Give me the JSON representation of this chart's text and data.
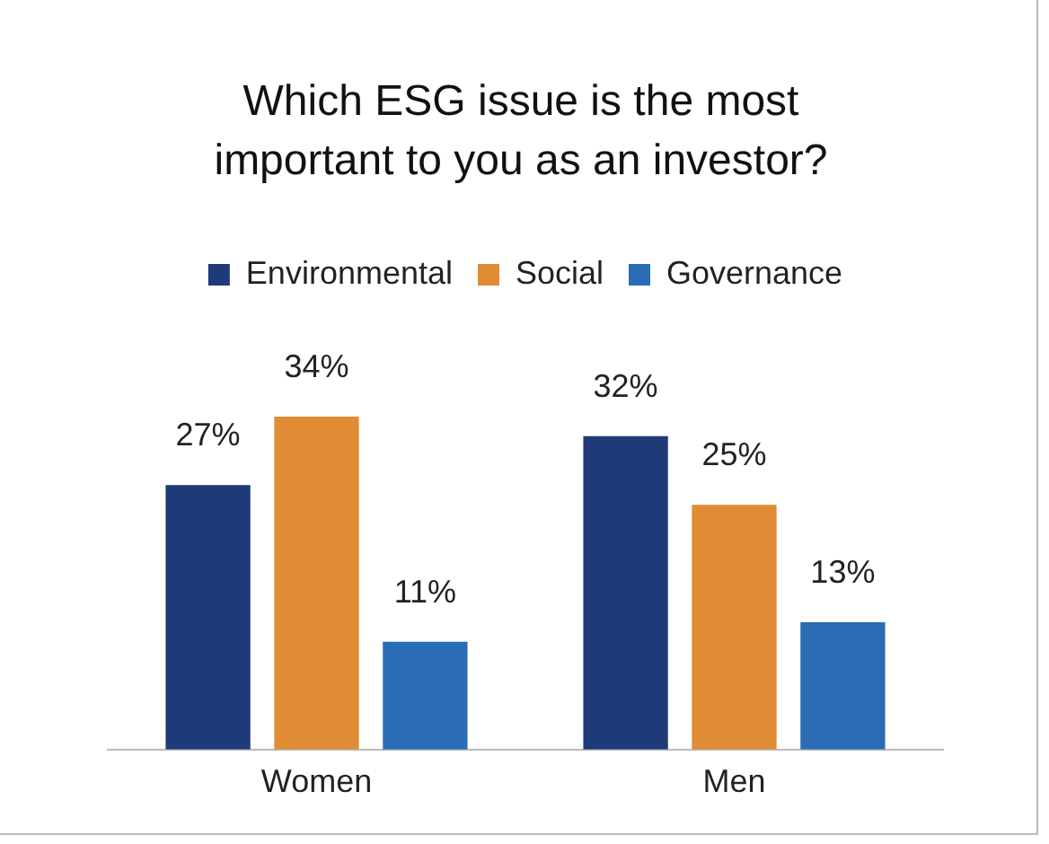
{
  "chart_data": {
    "type": "bar",
    "title": "Which ESG issue is the most important to you as an investor?",
    "categories": [
      "Women",
      "Men"
    ],
    "series": [
      {
        "name": "Environmental",
        "color": "#1f3a78",
        "values": [
          27,
          32
        ],
        "value_labels": [
          "27%",
          "32%"
        ]
      },
      {
        "name": "Social",
        "color": "#e08c35",
        "values": [
          34,
          25
        ],
        "value_labels": [
          "34%",
          "25%"
        ]
      },
      {
        "name": "Governance",
        "color": "#2a6db5",
        "values": [
          11,
          13
        ],
        "value_labels": [
          "11%",
          "13%"
        ]
      }
    ],
    "legend": "top",
    "grid": false
  }
}
